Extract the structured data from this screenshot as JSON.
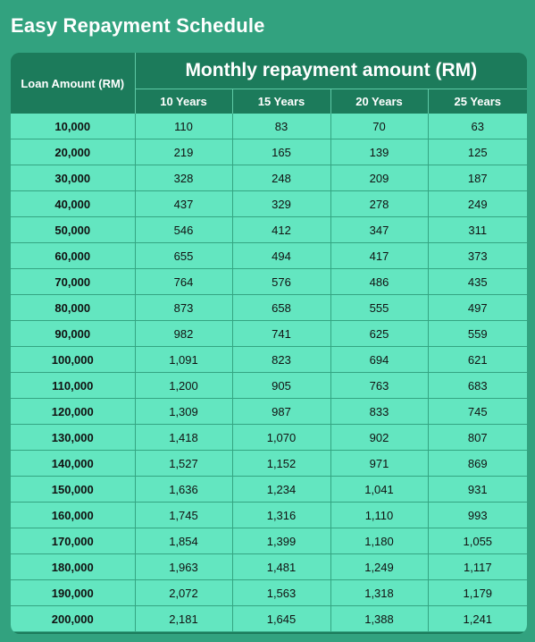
{
  "title": "Easy Repayment Schedule",
  "header": {
    "loan_amount": "Loan Amount (RM)",
    "monthly": "Monthly repayment amount (RM)",
    "years": [
      "10 Years",
      "15 Years",
      "20 Years",
      "25 Years"
    ]
  },
  "rows": [
    [
      "10,000",
      "110",
      "83",
      "70",
      "63"
    ],
    [
      "20,000",
      "219",
      "165",
      "139",
      "125"
    ],
    [
      "30,000",
      "328",
      "248",
      "209",
      "187"
    ],
    [
      "40,000",
      "437",
      "329",
      "278",
      "249"
    ],
    [
      "50,000",
      "546",
      "412",
      "347",
      "311"
    ],
    [
      "60,000",
      "655",
      "494",
      "417",
      "373"
    ],
    [
      "70,000",
      "764",
      "576",
      "486",
      "435"
    ],
    [
      "80,000",
      "873",
      "658",
      "555",
      "497"
    ],
    [
      "90,000",
      "982",
      "741",
      "625",
      "559"
    ],
    [
      "100,000",
      "1,091",
      "823",
      "694",
      "621"
    ],
    [
      "110,000",
      "1,200",
      "905",
      "763",
      "683"
    ],
    [
      "120,000",
      "1,309",
      "987",
      "833",
      "745"
    ],
    [
      "130,000",
      "1,418",
      "1,070",
      "902",
      "807"
    ],
    [
      "140,000",
      "1,527",
      "1,152",
      "971",
      "869"
    ],
    [
      "150,000",
      "1,636",
      "1,234",
      "1,041",
      "931"
    ],
    [
      "160,000",
      "1,745",
      "1,316",
      "1,110",
      "993"
    ],
    [
      "170,000",
      "1,854",
      "1,399",
      "1,180",
      "1,055"
    ],
    [
      "180,000",
      "1,963",
      "1,481",
      "1,249",
      "1,117"
    ],
    [
      "190,000",
      "2,072",
      "1,563",
      "1,318",
      "1,179"
    ],
    [
      "200,000",
      "2,181",
      "1,645",
      "1,388",
      "1,241"
    ]
  ],
  "colors": {
    "background": "#32a27f",
    "header": "#1c7b5b",
    "cell": "#63e6c0",
    "text_light": "#ffffff",
    "text_dark": "#111111"
  }
}
